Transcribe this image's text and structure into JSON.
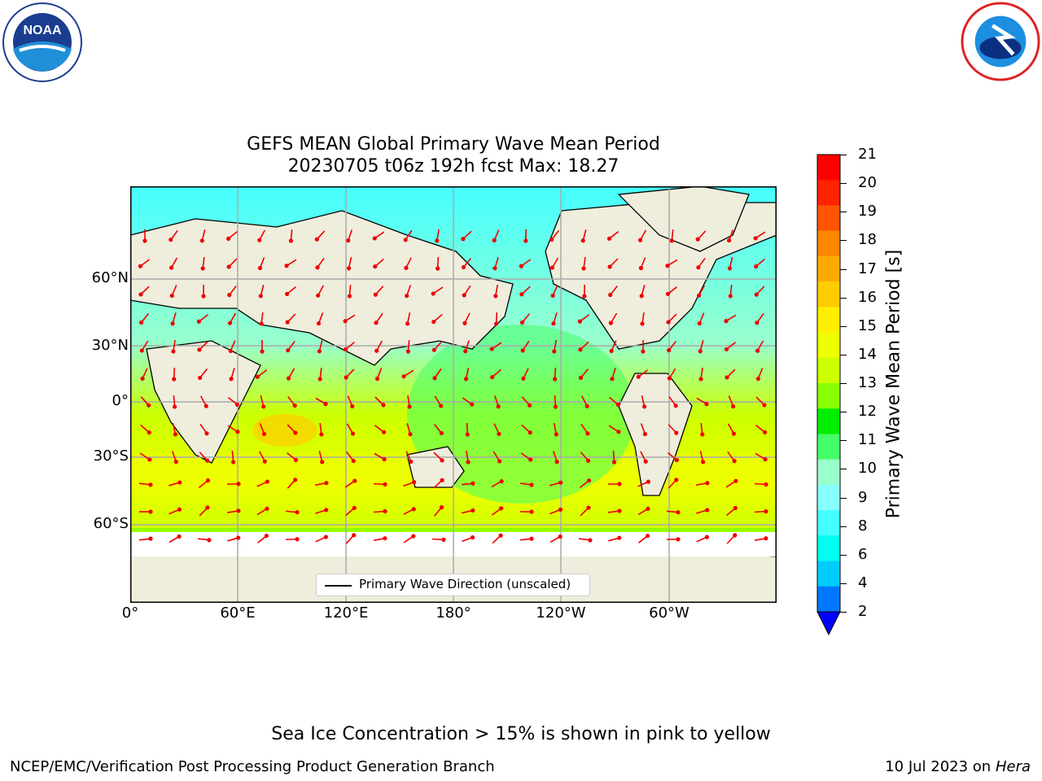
{
  "title_line1": "GEFS MEAN Global Primary Wave Mean Period",
  "title_line2": "20230705 t06z 192h fcst   Max: 18.27",
  "map": {
    "lat_labels": [
      "60°N",
      "30°N",
      "0°",
      "30°S",
      "60°S"
    ],
    "lon_labels": [
      "0°",
      "60°E",
      "120°E",
      "180°",
      "120°W",
      "60°W"
    ],
    "legend_label": "Primary Wave Direction (unscaled)"
  },
  "colorbar": {
    "label": "Primary Wave Mean Period [s]",
    "ticks": [
      "21",
      "20",
      "19",
      "18",
      "17",
      "16",
      "15",
      "14",
      "13",
      "12",
      "11",
      "10",
      "9",
      "8",
      "6",
      "4",
      "2"
    ],
    "colors": [
      "#ff0000",
      "#ff2200",
      "#ff5500",
      "#ff8800",
      "#ffaa00",
      "#ffcc00",
      "#ffee00",
      "#eeff00",
      "#ccff00",
      "#88ff00",
      "#00ee00",
      "#44ff66",
      "#99ffcc",
      "#88ffff",
      "#44ffff",
      "#00ffee",
      "#00ccff",
      "#0077ff"
    ],
    "extend_color": "#0000ff"
  },
  "chart_data": {
    "type": "heatmap",
    "title": "GEFS MEAN Global Primary Wave Mean Period",
    "subtitle": "20230705 t06z 192h fcst   Max: 18.27",
    "variable": "Primary Wave Mean Period [s]",
    "max": 18.27,
    "colorbar_levels": [
      2,
      4,
      6,
      8,
      9,
      10,
      11,
      12,
      13,
      14,
      15,
      16,
      17,
      18,
      19,
      20,
      21
    ],
    "x_ticks": [
      "0°",
      "60°E",
      "120°E",
      "180°",
      "120°W",
      "60°W"
    ],
    "y_ticks": [
      "60°N",
      "30°N",
      "0°",
      "30°S",
      "60°S"
    ],
    "legend": [
      "Primary Wave Direction (unscaled)"
    ]
  },
  "note": "Sea Ice Concentration > 15% is shown in pink to yellow",
  "footer_left": "NCEP/EMC/Verification Post Processing Product Generation Branch",
  "footer_right_date": "10 Jul 2023 on ",
  "footer_right_system": "Hera"
}
